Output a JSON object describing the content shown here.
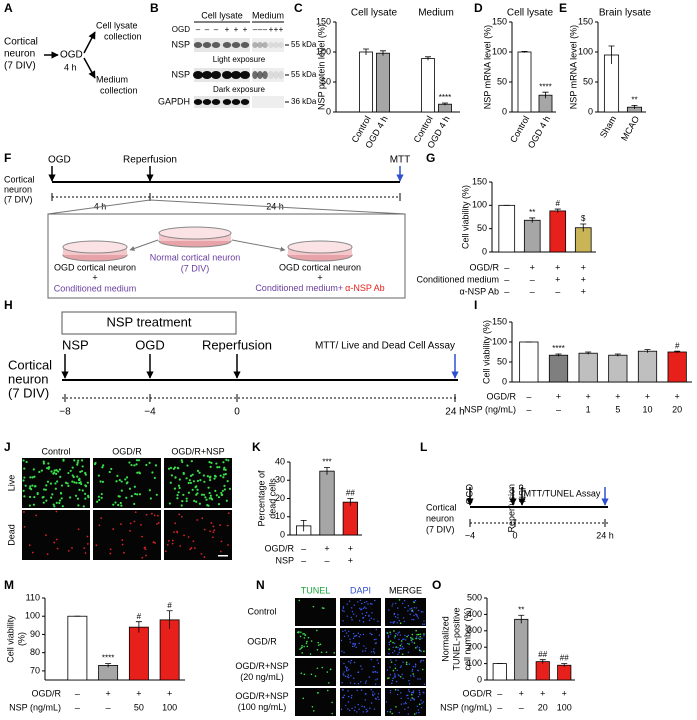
{
  "panel_a": {
    "letter": "A",
    "source": [
      "Cortical",
      "neuron",
      "(7 DIV)"
    ],
    "step": "OGD",
    "time": "4 h",
    "outputs": [
      [
        "Cell lysate",
        "collection"
      ],
      [
        "Medium",
        "collection"
      ]
    ]
  },
  "panel_b": {
    "letter": "B",
    "groups": [
      "Cell lysate",
      "Medium"
    ],
    "treatment": "OGD",
    "signs": [
      "–",
      "–",
      "–",
      "+",
      "+",
      "+",
      "–",
      "–",
      "–",
      "+",
      "+",
      "+"
    ],
    "blots": [
      {
        "name": "NSP",
        "size": "55 kDa",
        "note": "Light exposure"
      },
      {
        "name": "NSP",
        "size": "55 kDa",
        "note": "Dark exposure"
      },
      {
        "name": "GAPDH",
        "size": "36 kDa"
      }
    ]
  },
  "panel_c": {
    "letter": "C",
    "type": "bar",
    "titles": [
      "Cell lysate",
      "Medium"
    ],
    "ylabel": [
      "NSP protein level (%)"
    ],
    "ylim": [
      0,
      150
    ],
    "yticks": [
      0,
      50,
      100,
      150
    ],
    "categories": [
      "Control",
      "OGD 4 h",
      "Control",
      "OGD 4 h"
    ],
    "values": [
      100,
      98,
      89,
      13
    ],
    "errors": [
      5,
      4,
      3,
      2
    ],
    "colors": [
      "#ffffff",
      "#a6a6a6",
      "#ffffff",
      "#a6a6a6"
    ],
    "stars": [
      null,
      null,
      null,
      "****"
    ]
  },
  "panel_d": {
    "letter": "D",
    "type": "bar",
    "titles": [
      "Cell lysate"
    ],
    "ylabel": [
      "NSP mRNA level (%)"
    ],
    "ylim": [
      0,
      150
    ],
    "yticks": [
      0,
      50,
      100,
      150
    ],
    "categories": [
      "Control",
      "OGD 4 h"
    ],
    "values": [
      100,
      28
    ],
    "errors": [
      1,
      5
    ],
    "colors": [
      "#ffffff",
      "#a6a6a6"
    ],
    "stars": [
      null,
      "****"
    ]
  },
  "panel_e": {
    "letter": "E",
    "type": "bar",
    "titles": [
      "Brain lysate"
    ],
    "ylabel": [
      "NSP mRNA level (%)"
    ],
    "ylim": [
      0,
      150
    ],
    "yticks": [
      0,
      50,
      100,
      150
    ],
    "categories": [
      "Sham",
      "MCAO"
    ],
    "values": [
      95,
      8
    ],
    "errors": [
      15,
      3
    ],
    "colors": [
      "#ffffff",
      "#a6a6a6"
    ],
    "stars": [
      null,
      "**"
    ]
  },
  "panel_f": {
    "letter": "F",
    "events": [
      "OGD",
      "Reperfusion",
      "MTT"
    ],
    "source": [
      "Cortical",
      "neuron",
      "(7 DIV)"
    ],
    "durations": [
      "4 h",
      "24 h"
    ],
    "dishes": [
      {
        "lines": [
          "OGD cortical neuron",
          "+",
          "Conditioned medium"
        ]
      },
      {
        "lines": [
          "Normal cortical neuron",
          "(7 DIV)"
        ]
      },
      {
        "lines": [
          "OGD cortical neuron",
          "+"
        ],
        "medium": "Conditioned medium+",
        "antibody": "α-NSP Ab"
      }
    ]
  },
  "panel_g": {
    "letter": "G",
    "type": "bar",
    "ylabel": [
      "Cell viability (%)"
    ],
    "ylim": [
      0,
      150
    ],
    "yticks": [
      0,
      50,
      100,
      150
    ],
    "values": [
      100,
      68,
      88,
      52
    ],
    "errors": [
      0,
      5,
      4,
      8
    ],
    "colors": [
      "#ffffff",
      "#a6a6a6",
      "#e8201c",
      "#c9b458"
    ],
    "stars": [
      null,
      "**",
      "#",
      "$"
    ],
    "conditions": [
      {
        "name": "OGD/R",
        "marks": [
          "–",
          "+",
          "+",
          "+"
        ]
      },
      {
        "name": "Conditioned medium",
        "marks": [
          "–",
          "–",
          "+",
          "+"
        ]
      },
      {
        "name": "α-NSP Ab",
        "marks": [
          "–",
          "–",
          "–",
          "+"
        ]
      }
    ]
  },
  "panel_h": {
    "letter": "H",
    "treatment": "NSP treatment",
    "events": [
      "NSP",
      "OGD",
      "Reperfusion",
      "MTT/ Live and Dead Cell Assay"
    ],
    "source": [
      "Cortical",
      "neuron",
      "(7 DIV)"
    ],
    "times": [
      "−8",
      "−4",
      "0",
      "24 h"
    ]
  },
  "panel_i": {
    "letter": "I",
    "type": "bar",
    "ylabel": [
      "Cell viability (%)"
    ],
    "ylim": [
      0,
      150
    ],
    "yticks": [
      0,
      50,
      100,
      150
    ],
    "values": [
      100,
      67,
      72,
      67,
      77,
      75
    ],
    "errors": [
      0,
      3,
      3,
      3,
      4,
      2
    ],
    "colors": [
      "#ffffff",
      "#7f7f7f",
      "#bfbfbf",
      "#bfbfbf",
      "#bfbfbf",
      "#e8201c"
    ],
    "stars": [
      null,
      "****",
      null,
      null,
      null,
      "#"
    ],
    "conditions": [
      {
        "name": "OGD/R",
        "marks": [
          "–",
          "+",
          "+",
          "+",
          "+",
          "+"
        ]
      },
      {
        "name": "NSP (ng/mL)",
        "marks": [
          "–",
          "–",
          "1",
          "5",
          "10",
          "20"
        ]
      }
    ]
  },
  "panel_j": {
    "letter": "J",
    "columns": [
      "Control",
      "OGD/R",
      "OGD/R+NSP"
    ],
    "rows": [
      "Live",
      "Dead"
    ]
  },
  "panel_k": {
    "letter": "K",
    "type": "bar",
    "ylabel": [
      "Percentage of",
      "dead cells"
    ],
    "ylim": [
      0,
      40
    ],
    "yticks": [
      0,
      10,
      20,
      30,
      40
    ],
    "values": [
      5,
      35,
      18
    ],
    "errors": [
      3,
      2,
      2
    ],
    "colors": [
      "#ffffff",
      "#a6a6a6",
      "#e8201c"
    ],
    "stars": [
      null,
      "***",
      "##"
    ],
    "conditions": [
      {
        "name": "OGD/R",
        "marks": [
          "–",
          "+",
          "+"
        ]
      },
      {
        "name": "NSP",
        "marks": [
          "–",
          "–",
          "+"
        ]
      }
    ]
  },
  "panel_l": {
    "letter": "L",
    "events": [
      "OGD",
      "Reperfusion",
      "NSP",
      "MTT/TUNEL Assay"
    ],
    "source": [
      "Cortical",
      "neuron",
      "(7 DIV)"
    ],
    "times": [
      "−4",
      "0",
      "24 h"
    ]
  },
  "panel_m": {
    "letter": "M",
    "type": "bar",
    "ylabel": [
      "Cell viability",
      "(%)"
    ],
    "ylim": [
      65,
      110
    ],
    "yticks": [
      70,
      80,
      90,
      100,
      110
    ],
    "values": [
      100,
      73,
      94,
      98
    ],
    "errors": [
      0,
      1,
      3,
      5
    ],
    "colors": [
      "#ffffff",
      "#a6a6a6",
      "#e8201c",
      "#e8201c"
    ],
    "stars": [
      null,
      "****",
      "#",
      "#"
    ],
    "conditions": [
      {
        "name": "OGD/R",
        "marks": [
          "–",
          "+",
          "+",
          "+"
        ]
      },
      {
        "name": "NSP (ng/mL)",
        "marks": [
          "–",
          "–",
          "50",
          "100"
        ]
      }
    ]
  },
  "panel_n": {
    "letter": "N",
    "columns": [
      "TUNEL",
      "DAPI",
      "MERGE"
    ],
    "rows": [
      [
        "Control"
      ],
      [
        "OGD/R"
      ],
      [
        "OGD/R+NSP",
        "(20 ng/mL)"
      ],
      [
        "OGD/R+NSP",
        "(100 ng/mL)"
      ]
    ]
  },
  "panel_o": {
    "letter": "O",
    "type": "bar",
    "ylabel": [
      "Normalized",
      "TUNEL-positive",
      "cell number (%)"
    ],
    "ylim": [
      0,
      500
    ],
    "yticks": [
      0,
      100,
      200,
      300,
      400,
      500
    ],
    "values": [
      100,
      370,
      112,
      90
    ],
    "errors": [
      0,
      25,
      12,
      10
    ],
    "colors": [
      "#ffffff",
      "#a6a6a6",
      "#e8201c",
      "#e8201c"
    ],
    "stars": [
      null,
      "**",
      "##",
      "##"
    ],
    "conditions": [
      {
        "name": "OGD/R",
        "marks": [
          "–",
          "+",
          "+",
          "+"
        ]
      },
      {
        "name": "NSP (ng/mL)",
        "marks": [
          "–",
          "–",
          "20",
          "100"
        ]
      }
    ]
  }
}
